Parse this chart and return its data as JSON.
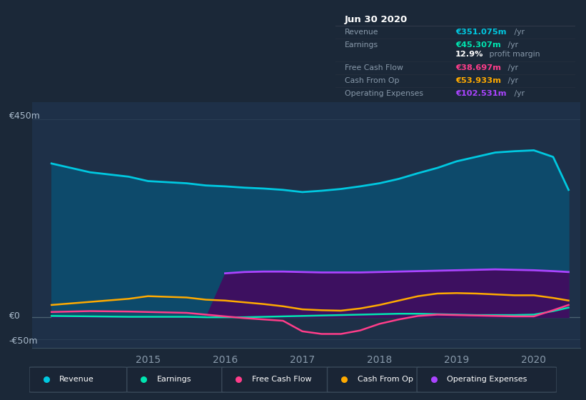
{
  "background_color": "#1b2838",
  "plot_bg_color": "#1e3048",
  "grid_color": "#2a3f55",
  "xlabel_years": [
    "2015",
    "2016",
    "2017",
    "2018",
    "2019",
    "2020"
  ],
  "years": [
    2013.75,
    2014.25,
    2014.75,
    2015.0,
    2015.5,
    2015.75,
    2016.0,
    2016.25,
    2016.5,
    2016.75,
    2017.0,
    2017.25,
    2017.5,
    2017.75,
    2018.0,
    2018.25,
    2018.5,
    2018.75,
    2019.0,
    2019.25,
    2019.5,
    2019.75,
    2020.0,
    2020.25,
    2020.45
  ],
  "revenue": [
    350,
    330,
    320,
    310,
    305,
    300,
    298,
    295,
    293,
    290,
    285,
    288,
    292,
    298,
    305,
    315,
    328,
    340,
    355,
    365,
    375,
    378,
    380,
    365,
    290
  ],
  "earnings": [
    3,
    2,
    1,
    1,
    1,
    0,
    0,
    0,
    1,
    2,
    3,
    4,
    5,
    6,
    7,
    8,
    8,
    7,
    6,
    5,
    5,
    5,
    6,
    14,
    22
  ],
  "free_cash_flow": [
    12,
    14,
    13,
    12,
    10,
    6,
    2,
    -2,
    -5,
    -8,
    -32,
    -38,
    -38,
    -30,
    -15,
    -5,
    3,
    6,
    5,
    4,
    3,
    2,
    2,
    16,
    28
  ],
  "cash_from_op": [
    28,
    35,
    42,
    48,
    45,
    40,
    38,
    34,
    30,
    25,
    18,
    16,
    15,
    20,
    28,
    38,
    48,
    54,
    55,
    54,
    52,
    50,
    50,
    44,
    38
  ],
  "op_expenses": [
    0,
    0,
    0,
    0,
    0,
    0,
    100,
    103,
    104,
    104,
    103,
    102,
    102,
    102,
    103,
    104,
    105,
    106,
    107,
    108,
    109,
    108,
    107,
    105,
    103
  ],
  "revenue_color": "#00c8e0",
  "revenue_fill": "#0d4a6b",
  "earnings_color": "#00e5b0",
  "free_cash_flow_color": "#ff3d8a",
  "cash_from_op_color": "#ffaa00",
  "op_expenses_color": "#aa44ff",
  "op_expenses_fill": "#3d1060",
  "ylim": [
    -70,
    490
  ],
  "xlim": [
    2013.5,
    2020.6
  ],
  "ytick_positions": [
    450,
    0,
    -50
  ],
  "ytick_labels": [
    "€450m",
    "€0",
    "-€50m"
  ],
  "legend": [
    {
      "label": "Revenue",
      "color": "#00c8e0"
    },
    {
      "label": "Earnings",
      "color": "#00e5b0"
    },
    {
      "label": "Free Cash Flow",
      "color": "#ff3d8a"
    },
    {
      "label": "Cash From Op",
      "color": "#ffaa00"
    },
    {
      "label": "Operating Expenses",
      "color": "#aa44ff"
    }
  ],
  "info_box_title": "Jun 30 2020",
  "info_rows": [
    {
      "label": "Revenue",
      "value": "€351.075m",
      "suffix": " /yr",
      "value_color": "#00c8e0"
    },
    {
      "label": "Earnings",
      "value": "€45.307m",
      "suffix": " /yr",
      "value_color": "#00e5b0"
    },
    {
      "label": "",
      "value": "12.9%",
      "suffix": " profit margin",
      "value_color": "#ffffff"
    },
    {
      "label": "Free Cash Flow",
      "value": "€38.697m",
      "suffix": " /yr",
      "value_color": "#ff3d8a"
    },
    {
      "label": "Cash From Op",
      "value": "€53.933m",
      "suffix": " /yr",
      "value_color": "#ffaa00"
    },
    {
      "label": "Operating Expenses",
      "value": "€102.531m",
      "suffix": " /yr",
      "value_color": "#aa44ff"
    }
  ]
}
